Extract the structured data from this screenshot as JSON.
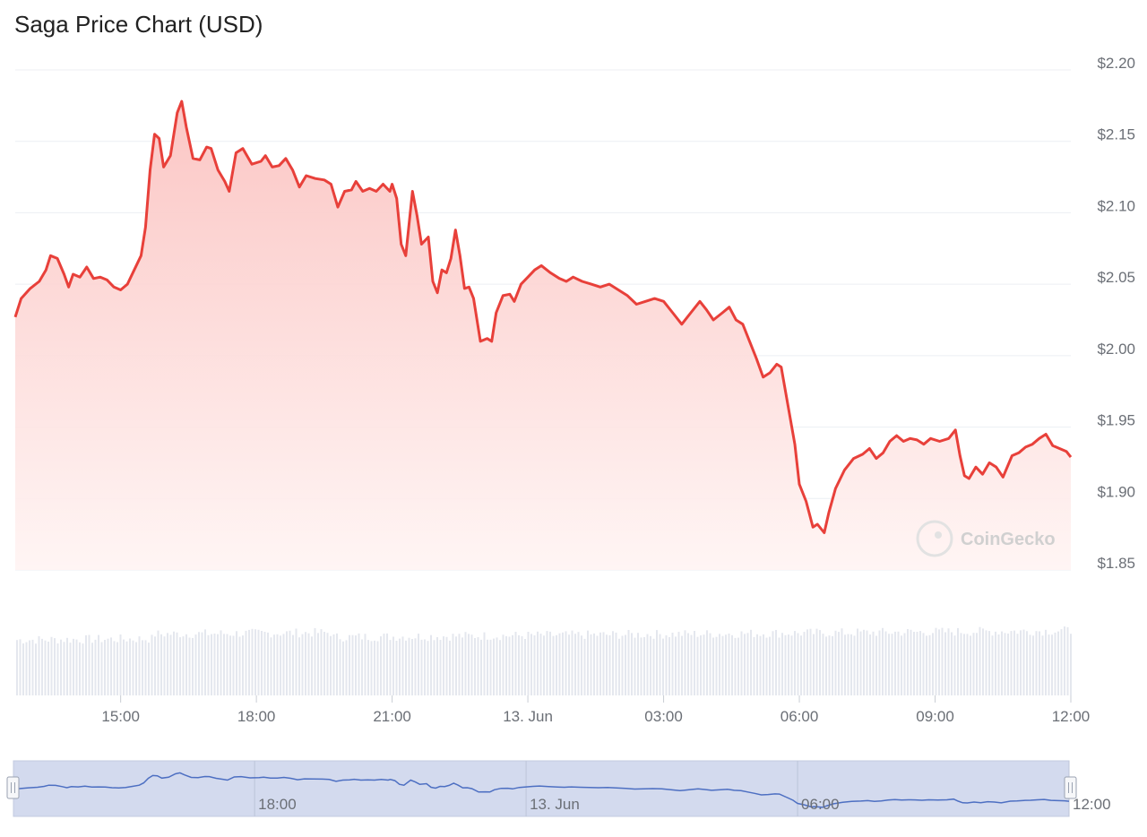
{
  "title": "Saga Price Chart (USD)",
  "watermark": "CoinGecko",
  "colors": {
    "line": "#e8403a",
    "area_top": "#fbc3c1",
    "area_bottom": "#fff4f3",
    "volume": "#e4e7ee",
    "grid": "#eceff3",
    "navigator_fill": "#d3daee",
    "navigator_line": "#4d6fc2"
  },
  "chart_data": {
    "type": "area",
    "title": "Saga Price Chart (USD)",
    "xlabel": "",
    "ylabel": "",
    "ylim": [
      1.85,
      2.2
    ],
    "y_ticks": [
      "$2.20",
      "$2.15",
      "$2.10",
      "$2.05",
      "$2.00",
      "$1.95",
      "$1.90",
      "$1.85"
    ],
    "y_tick_values": [
      2.2,
      2.15,
      2.1,
      2.05,
      2.0,
      1.95,
      1.9,
      1.85
    ],
    "x_range_hours": [
      12.67,
      36.0
    ],
    "x_ticks": [
      {
        "label": "15:00",
        "t": 15
      },
      {
        "label": "18:00",
        "t": 18
      },
      {
        "label": "21:00",
        "t": 21
      },
      {
        "label": "13. Jun",
        "t": 24
      },
      {
        "label": "03:00",
        "t": 27
      },
      {
        "label": "06:00",
        "t": 30
      },
      {
        "label": "09:00",
        "t": 33
      },
      {
        "label": "12:00",
        "t": 36
      }
    ],
    "grid": true,
    "series": [
      {
        "points": [
          [
            12.67,
            2.027
          ],
          [
            12.8,
            2.04
          ],
          [
            13.0,
            2.047
          ],
          [
            13.2,
            2.052
          ],
          [
            13.35,
            2.06
          ],
          [
            13.45,
            2.07
          ],
          [
            13.6,
            2.068
          ],
          [
            13.75,
            2.057
          ],
          [
            13.85,
            2.048
          ],
          [
            13.95,
            2.057
          ],
          [
            14.1,
            2.055
          ],
          [
            14.25,
            2.062
          ],
          [
            14.4,
            2.054
          ],
          [
            14.55,
            2.055
          ],
          [
            14.7,
            2.053
          ],
          [
            14.85,
            2.048
          ],
          [
            15.0,
            2.046
          ],
          [
            15.15,
            2.05
          ],
          [
            15.3,
            2.06
          ],
          [
            15.45,
            2.07
          ],
          [
            15.55,
            2.09
          ],
          [
            15.65,
            2.13
          ],
          [
            15.75,
            2.155
          ],
          [
            15.85,
            2.152
          ],
          [
            15.95,
            2.132
          ],
          [
            16.1,
            2.14
          ],
          [
            16.25,
            2.17
          ],
          [
            16.35,
            2.178
          ],
          [
            16.45,
            2.16
          ],
          [
            16.6,
            2.138
          ],
          [
            16.75,
            2.137
          ],
          [
            16.9,
            2.146
          ],
          [
            17.0,
            2.145
          ],
          [
            17.15,
            2.13
          ],
          [
            17.3,
            2.122
          ],
          [
            17.4,
            2.115
          ],
          [
            17.55,
            2.142
          ],
          [
            17.7,
            2.145
          ],
          [
            17.9,
            2.134
          ],
          [
            18.1,
            2.136
          ],
          [
            18.2,
            2.14
          ],
          [
            18.35,
            2.132
          ],
          [
            18.5,
            2.133
          ],
          [
            18.65,
            2.138
          ],
          [
            18.8,
            2.13
          ],
          [
            18.95,
            2.118
          ],
          [
            19.1,
            2.126
          ],
          [
            19.3,
            2.124
          ],
          [
            19.5,
            2.123
          ],
          [
            19.65,
            2.12
          ],
          [
            19.8,
            2.104
          ],
          [
            19.95,
            2.115
          ],
          [
            20.1,
            2.116
          ],
          [
            20.2,
            2.122
          ],
          [
            20.35,
            2.115
          ],
          [
            20.5,
            2.117
          ],
          [
            20.65,
            2.115
          ],
          [
            20.8,
            2.12
          ],
          [
            20.95,
            2.115
          ],
          [
            21.0,
            2.12
          ],
          [
            21.1,
            2.11
          ],
          [
            21.2,
            2.078
          ],
          [
            21.3,
            2.07
          ],
          [
            21.45,
            2.115
          ],
          [
            21.55,
            2.098
          ],
          [
            21.65,
            2.078
          ],
          [
            21.8,
            2.083
          ],
          [
            21.9,
            2.052
          ],
          [
            22.0,
            2.044
          ],
          [
            22.1,
            2.06
          ],
          [
            22.2,
            2.058
          ],
          [
            22.3,
            2.068
          ],
          [
            22.4,
            2.088
          ],
          [
            22.5,
            2.07
          ],
          [
            22.6,
            2.047
          ],
          [
            22.7,
            2.048
          ],
          [
            22.8,
            2.04
          ],
          [
            22.95,
            2.01
          ],
          [
            23.1,
            2.012
          ],
          [
            23.2,
            2.01
          ],
          [
            23.3,
            2.03
          ],
          [
            23.45,
            2.042
          ],
          [
            23.6,
            2.043
          ],
          [
            23.7,
            2.038
          ],
          [
            23.85,
            2.05
          ],
          [
            24.0,
            2.055
          ],
          [
            24.15,
            2.06
          ],
          [
            24.3,
            2.063
          ],
          [
            24.5,
            2.058
          ],
          [
            24.7,
            2.054
          ],
          [
            24.85,
            2.052
          ],
          [
            25.0,
            2.055
          ],
          [
            25.2,
            2.052
          ],
          [
            25.4,
            2.05
          ],
          [
            25.6,
            2.048
          ],
          [
            25.8,
            2.05
          ],
          [
            26.0,
            2.046
          ],
          [
            26.2,
            2.042
          ],
          [
            26.4,
            2.036
          ],
          [
            26.6,
            2.038
          ],
          [
            26.8,
            2.04
          ],
          [
            27.0,
            2.038
          ],
          [
            27.2,
            2.03
          ],
          [
            27.4,
            2.022
          ],
          [
            27.6,
            2.03
          ],
          [
            27.8,
            2.038
          ],
          [
            27.95,
            2.032
          ],
          [
            28.1,
            2.025
          ],
          [
            28.3,
            2.03
          ],
          [
            28.45,
            2.034
          ],
          [
            28.6,
            2.025
          ],
          [
            28.75,
            2.022
          ],
          [
            28.9,
            2.01
          ],
          [
            29.05,
            1.998
          ],
          [
            29.2,
            1.985
          ],
          [
            29.35,
            1.988
          ],
          [
            29.5,
            1.994
          ],
          [
            29.6,
            1.992
          ],
          [
            29.75,
            1.965
          ],
          [
            29.9,
            1.938
          ],
          [
            30.0,
            1.91
          ],
          [
            30.15,
            1.898
          ],
          [
            30.3,
            1.88
          ],
          [
            30.4,
            1.882
          ],
          [
            30.55,
            1.876
          ],
          [
            30.65,
            1.89
          ],
          [
            30.8,
            1.907
          ],
          [
            31.0,
            1.92
          ],
          [
            31.2,
            1.928
          ],
          [
            31.4,
            1.931
          ],
          [
            31.55,
            1.935
          ],
          [
            31.7,
            1.928
          ],
          [
            31.85,
            1.932
          ],
          [
            32.0,
            1.94
          ],
          [
            32.15,
            1.944
          ],
          [
            32.3,
            1.94
          ],
          [
            32.45,
            1.942
          ],
          [
            32.6,
            1.941
          ],
          [
            32.75,
            1.938
          ],
          [
            32.9,
            1.942
          ],
          [
            33.1,
            1.94
          ],
          [
            33.3,
            1.942
          ],
          [
            33.45,
            1.948
          ],
          [
            33.55,
            1.93
          ],
          [
            33.65,
            1.916
          ],
          [
            33.75,
            1.914
          ],
          [
            33.9,
            1.922
          ],
          [
            34.05,
            1.917
          ],
          [
            34.2,
            1.925
          ],
          [
            34.35,
            1.922
          ],
          [
            34.5,
            1.915
          ],
          [
            34.7,
            1.93
          ],
          [
            34.85,
            1.932
          ],
          [
            35.0,
            1.936
          ],
          [
            35.15,
            1.938
          ],
          [
            35.3,
            1.942
          ],
          [
            35.45,
            1.945
          ],
          [
            35.6,
            1.937
          ],
          [
            35.75,
            1.935
          ],
          [
            35.9,
            1.933
          ],
          [
            36.0,
            1.929
          ]
        ]
      }
    ],
    "volume": true,
    "navigator": {
      "range_hours": [
        12.67,
        36.0
      ],
      "ticks": [
        {
          "label": "18:00",
          "t": 18
        },
        {
          "label": "13. Jun",
          "t": 24
        },
        {
          "label": "06:00",
          "t": 30
        },
        {
          "label": "12:00",
          "t": 36
        }
      ]
    }
  }
}
